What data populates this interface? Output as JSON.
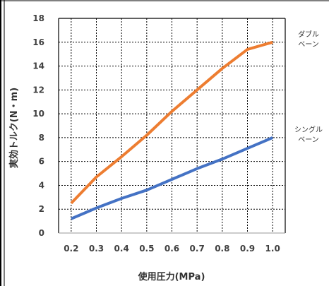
{
  "chart_data": {
    "type": "line",
    "title": "",
    "xlabel": "使用圧力(MPa)",
    "ylabel": "実効トルク(N・m)",
    "x": [
      0.2,
      0.3,
      0.4,
      0.5,
      0.6,
      0.7,
      0.8,
      0.9,
      1.0
    ],
    "x_tick_labels": [
      "0.2",
      "0.3",
      "0.4",
      "0.5",
      "0.6",
      "0.7",
      "0.8",
      "0.9",
      "1.0"
    ],
    "xlim": [
      0.15,
      1.05
    ],
    "ylim": [
      0,
      18
    ],
    "y_ticks": [
      0,
      2,
      4,
      6,
      8,
      10,
      12,
      14,
      16,
      18
    ],
    "grid": true,
    "legend_placement": "right",
    "series": [
      {
        "name_lines": [
          "ダブル",
          "ベーン"
        ],
        "color": "#ED7D31",
        "values": [
          2.5,
          4.7,
          6.4,
          8.2,
          10.2,
          12.0,
          13.8,
          15.4,
          16.0
        ]
      },
      {
        "name_lines": [
          "シングル",
          "ベーン"
        ],
        "color": "#4472C4",
        "values": [
          1.2,
          2.1,
          2.9,
          3.6,
          4.5,
          5.4,
          6.2,
          7.1,
          8.0
        ]
      }
    ]
  }
}
